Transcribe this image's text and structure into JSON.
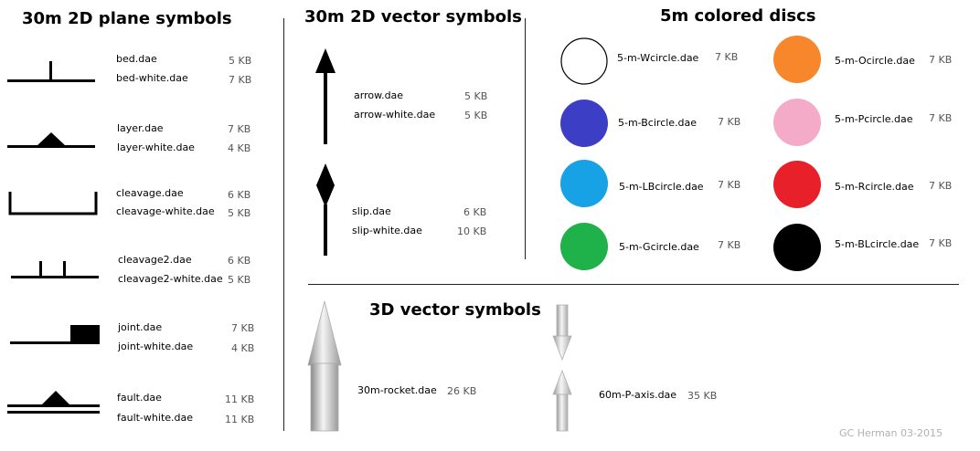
{
  "sections": {
    "planes": {
      "title": "30m 2D plane symbols"
    },
    "vectors2d": {
      "title": "30m 2D vector symbols"
    },
    "discs": {
      "title": "5m colored discs"
    },
    "vectors3d": {
      "title": "3D vector symbols"
    }
  },
  "planes": [
    {
      "icon": "bed-symbol-icon",
      "files": [
        {
          "name": "bed.dae",
          "size": "5 KB"
        },
        {
          "name": "bed-white.dae",
          "size": "7 KB"
        }
      ]
    },
    {
      "icon": "layer-symbol-icon",
      "files": [
        {
          "name": "layer.dae",
          "size": "7 KB"
        },
        {
          "name": "layer-white.dae",
          "size": "4 KB"
        }
      ]
    },
    {
      "icon": "cleavage-symbol-icon",
      "files": [
        {
          "name": "cleavage.dae",
          "size": "6 KB"
        },
        {
          "name": "cleavage-white.dae",
          "size": "5 KB"
        }
      ]
    },
    {
      "icon": "cleavage2-symbol-icon",
      "files": [
        {
          "name": "cleavage2.dae",
          "size": "6 KB"
        },
        {
          "name": "cleavage2-white.dae",
          "size": "5 KB"
        }
      ]
    },
    {
      "icon": "joint-symbol-icon",
      "files": [
        {
          "name": "joint.dae",
          "size": "7 KB"
        },
        {
          "name": "joint-white.dae",
          "size": "4 KB"
        }
      ]
    },
    {
      "icon": "fault-symbol-icon",
      "files": [
        {
          "name": "fault.dae",
          "size": "11 KB"
        },
        {
          "name": "fault-white.dae",
          "size": "11 KB"
        }
      ]
    }
  ],
  "vectors2d": [
    {
      "icon": "arrow-symbol-icon",
      "files": [
        {
          "name": "arrow.dae",
          "size": "5 KB"
        },
        {
          "name": "arrow-white.dae",
          "size": "5 KB"
        }
      ]
    },
    {
      "icon": "slip-symbol-icon",
      "files": [
        {
          "name": "slip.dae",
          "size": "6 KB"
        },
        {
          "name": "slip-white.dae",
          "size": "10 KB"
        }
      ]
    }
  ],
  "discs": [
    {
      "name": "5-m-Wcircle.dae",
      "size": "7 KB",
      "color": "#ffffff"
    },
    {
      "name": "5-m-Bcircle.dae",
      "size": "7 KB",
      "color": "#3c3fc6"
    },
    {
      "name": "5-m-LBcircle.dae",
      "size": "7 KB",
      "color": "#17a2e6"
    },
    {
      "name": "5-m-Gcircle.dae",
      "size": "7 KB",
      "color": "#1fb24a"
    },
    {
      "name": "5-m-Ocircle.dae",
      "size": "7 KB",
      "color": "#f8862b"
    },
    {
      "name": "5-m-Pcircle.dae",
      "size": "7 KB",
      "color": "#f4abc8"
    },
    {
      "name": "5-m-Rcircle.dae",
      "size": "7 KB",
      "color": "#e8202a"
    },
    {
      "name": "5-m-BLcircle.dae",
      "size": "7 KB",
      "color": "#000000"
    }
  ],
  "vectors3d": [
    {
      "icon": "rocket-3d-icon",
      "name": "30m-rocket.dae",
      "size": "26 KB"
    },
    {
      "icon": "p-axis-3d-icon",
      "name": "60m-P-axis.dae",
      "size": "35 KB"
    }
  ],
  "credit": "GC Herman 03-2015"
}
